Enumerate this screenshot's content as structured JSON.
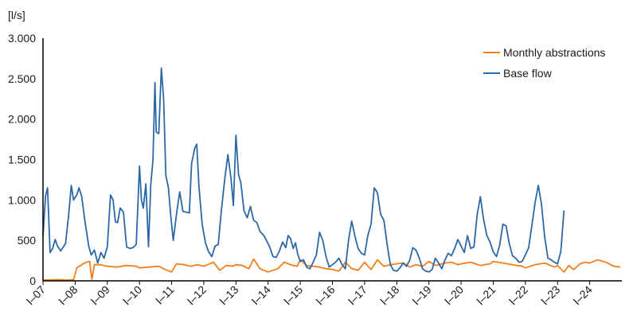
{
  "chart_data": {
    "type": "line",
    "y_unit": "[l/s]",
    "ylim": [
      0,
      3000
    ],
    "y_ticks": [
      {
        "value": 0,
        "label": "0"
      },
      {
        "value": 500,
        "label": "500"
      },
      {
        "value": 1000,
        "label": "1.000"
      },
      {
        "value": 1500,
        "label": "1.500"
      },
      {
        "value": 2000,
        "label": "2.000"
      },
      {
        "value": 2500,
        "label": "2.500"
      },
      {
        "value": 3000,
        "label": "3.000"
      }
    ],
    "x_ticks": [
      "I–07",
      "I–08",
      "I–09",
      "I–10",
      "I–11",
      "I–12",
      "I–13",
      "I–14",
      "I–15",
      "I–16",
      "I–17",
      "I–18",
      "I–19",
      "I–20",
      "I–21",
      "I–22",
      "I–23",
      "I–24"
    ],
    "grid": false,
    "legend_position": "top-right",
    "series": [
      {
        "name": "Monthly abstractions",
        "color": "#f07f1e",
        "points": [
          [
            2007.0,
            10
          ],
          [
            2007.25,
            12
          ],
          [
            2007.5,
            15
          ],
          [
            2007.75,
            10
          ],
          [
            2007.95,
            15
          ],
          [
            2008.05,
            160
          ],
          [
            2008.2,
            200
          ],
          [
            2008.35,
            230
          ],
          [
            2008.45,
            240
          ],
          [
            2008.52,
            20
          ],
          [
            2008.6,
            200
          ],
          [
            2008.8,
            200
          ],
          [
            2009.0,
            180
          ],
          [
            2009.3,
            170
          ],
          [
            2009.6,
            190
          ],
          [
            2009.9,
            180
          ],
          [
            2010.0,
            160
          ],
          [
            2010.3,
            170
          ],
          [
            2010.6,
            180
          ],
          [
            2010.8,
            140
          ],
          [
            2011.0,
            110
          ],
          [
            2011.15,
            210
          ],
          [
            2011.4,
            200
          ],
          [
            2011.6,
            180
          ],
          [
            2011.8,
            200
          ],
          [
            2012.0,
            180
          ],
          [
            2012.3,
            230
          ],
          [
            2012.5,
            130
          ],
          [
            2012.7,
            190
          ],
          [
            2012.9,
            180
          ],
          [
            2013.0,
            200
          ],
          [
            2013.2,
            190
          ],
          [
            2013.4,
            150
          ],
          [
            2013.55,
            270
          ],
          [
            2013.75,
            150
          ],
          [
            2014.0,
            110
          ],
          [
            2014.3,
            150
          ],
          [
            2014.5,
            230
          ],
          [
            2014.7,
            200
          ],
          [
            2014.9,
            180
          ],
          [
            2015.0,
            260
          ],
          [
            2015.2,
            190
          ],
          [
            2015.4,
            180
          ],
          [
            2015.6,
            170
          ],
          [
            2015.8,
            150
          ],
          [
            2016.0,
            140
          ],
          [
            2016.2,
            120
          ],
          [
            2016.4,
            230
          ],
          [
            2016.6,
            150
          ],
          [
            2016.8,
            130
          ],
          [
            2017.0,
            230
          ],
          [
            2017.2,
            140
          ],
          [
            2017.4,
            260
          ],
          [
            2017.6,
            180
          ],
          [
            2017.8,
            200
          ],
          [
            2018.0,
            210
          ],
          [
            2018.2,
            220
          ],
          [
            2018.4,
            170
          ],
          [
            2018.6,
            200
          ],
          [
            2018.8,
            180
          ],
          [
            2019.0,
            240
          ],
          [
            2019.2,
            190
          ],
          [
            2019.5,
            220
          ],
          [
            2019.7,
            230
          ],
          [
            2019.9,
            200
          ],
          [
            2020.0,
            210
          ],
          [
            2020.3,
            230
          ],
          [
            2020.6,
            190
          ],
          [
            2020.9,
            210
          ],
          [
            2021.0,
            240
          ],
          [
            2021.3,
            220
          ],
          [
            2021.6,
            200
          ],
          [
            2021.9,
            180
          ],
          [
            2022.0,
            160
          ],
          [
            2022.3,
            200
          ],
          [
            2022.6,
            220
          ],
          [
            2022.9,
            170
          ],
          [
            2023.0,
            190
          ],
          [
            2023.2,
            110
          ],
          [
            2023.35,
            190
          ],
          [
            2023.5,
            140
          ],
          [
            2023.7,
            210
          ],
          [
            2023.85,
            230
          ],
          [
            2024.0,
            220
          ],
          [
            2024.25,
            260
          ],
          [
            2024.5,
            230
          ],
          [
            2024.75,
            180
          ],
          [
            2024.95,
            170
          ]
        ]
      },
      {
        "name": "Base flow",
        "color": "#2c68a6",
        "points": [
          [
            2007.0,
            550
          ],
          [
            2007.08,
            1050
          ],
          [
            2007.14,
            1150
          ],
          [
            2007.22,
            350
          ],
          [
            2007.3,
            400
          ],
          [
            2007.38,
            510
          ],
          [
            2007.45,
            430
          ],
          [
            2007.55,
            370
          ],
          [
            2007.7,
            460
          ],
          [
            2007.8,
            820
          ],
          [
            2007.88,
            1180
          ],
          [
            2007.95,
            1000
          ],
          [
            2008.05,
            1060
          ],
          [
            2008.12,
            1150
          ],
          [
            2008.2,
            1050
          ],
          [
            2008.3,
            750
          ],
          [
            2008.42,
            430
          ],
          [
            2008.5,
            320
          ],
          [
            2008.6,
            380
          ],
          [
            2008.7,
            220
          ],
          [
            2008.8,
            350
          ],
          [
            2008.9,
            280
          ],
          [
            2009.0,
            420
          ],
          [
            2009.1,
            1060
          ],
          [
            2009.18,
            1000
          ],
          [
            2009.25,
            730
          ],
          [
            2009.32,
            720
          ],
          [
            2009.4,
            900
          ],
          [
            2009.5,
            850
          ],
          [
            2009.6,
            420
          ],
          [
            2009.7,
            400
          ],
          [
            2009.8,
            410
          ],
          [
            2009.9,
            450
          ],
          [
            2010.0,
            1420
          ],
          [
            2010.06,
            1000
          ],
          [
            2010.12,
            900
          ],
          [
            2010.2,
            1200
          ],
          [
            2010.28,
            420
          ],
          [
            2010.35,
            1180
          ],
          [
            2010.42,
            1500
          ],
          [
            2010.48,
            2450
          ],
          [
            2010.52,
            1840
          ],
          [
            2010.6,
            1820
          ],
          [
            2010.68,
            2630
          ],
          [
            2010.75,
            2250
          ],
          [
            2010.82,
            1300
          ],
          [
            2010.9,
            1150
          ],
          [
            2010.98,
            780
          ],
          [
            2011.05,
            500
          ],
          [
            2011.15,
            820
          ],
          [
            2011.25,
            1100
          ],
          [
            2011.35,
            860
          ],
          [
            2011.45,
            850
          ],
          [
            2011.55,
            840
          ],
          [
            2011.62,
            1450
          ],
          [
            2011.72,
            1640
          ],
          [
            2011.78,
            1690
          ],
          [
            2011.85,
            1160
          ],
          [
            2011.95,
            700
          ],
          [
            2012.05,
            470
          ],
          [
            2012.15,
            360
          ],
          [
            2012.25,
            300
          ],
          [
            2012.35,
            430
          ],
          [
            2012.45,
            450
          ],
          [
            2012.55,
            890
          ],
          [
            2012.65,
            1250
          ],
          [
            2012.75,
            1560
          ],
          [
            2012.85,
            1250
          ],
          [
            2012.92,
            930
          ],
          [
            2013.0,
            1800
          ],
          [
            2013.08,
            1310
          ],
          [
            2013.15,
            1220
          ],
          [
            2013.25,
            870
          ],
          [
            2013.35,
            780
          ],
          [
            2013.45,
            920
          ],
          [
            2013.55,
            750
          ],
          [
            2013.65,
            720
          ],
          [
            2013.75,
            610
          ],
          [
            2013.85,
            570
          ],
          [
            2013.95,
            500
          ],
          [
            2014.05,
            420
          ],
          [
            2014.15,
            300
          ],
          [
            2014.25,
            290
          ],
          [
            2014.35,
            370
          ],
          [
            2014.45,
            480
          ],
          [
            2014.55,
            410
          ],
          [
            2014.62,
            560
          ],
          [
            2014.7,
            520
          ],
          [
            2014.78,
            400
          ],
          [
            2014.85,
            470
          ],
          [
            2014.92,
            330
          ],
          [
            2015.0,
            240
          ],
          [
            2015.1,
            260
          ],
          [
            2015.2,
            170
          ],
          [
            2015.3,
            150
          ],
          [
            2015.4,
            230
          ],
          [
            2015.5,
            320
          ],
          [
            2015.6,
            600
          ],
          [
            2015.7,
            500
          ],
          [
            2015.8,
            300
          ],
          [
            2015.9,
            170
          ],
          [
            2016.0,
            200
          ],
          [
            2016.1,
            230
          ],
          [
            2016.2,
            280
          ],
          [
            2016.3,
            200
          ],
          [
            2016.4,
            150
          ],
          [
            2016.5,
            500
          ],
          [
            2016.6,
            740
          ],
          [
            2016.7,
            550
          ],
          [
            2016.8,
            400
          ],
          [
            2016.9,
            340
          ],
          [
            2017.0,
            320
          ],
          [
            2017.1,
            560
          ],
          [
            2017.2,
            700
          ],
          [
            2017.3,
            1150
          ],
          [
            2017.4,
            1090
          ],
          [
            2017.5,
            820
          ],
          [
            2017.6,
            750
          ],
          [
            2017.7,
            450
          ],
          [
            2017.8,
            200
          ],
          [
            2017.9,
            130
          ],
          [
            2018.0,
            120
          ],
          [
            2018.1,
            160
          ],
          [
            2018.2,
            220
          ],
          [
            2018.3,
            180
          ],
          [
            2018.4,
            250
          ],
          [
            2018.5,
            410
          ],
          [
            2018.6,
            380
          ],
          [
            2018.7,
            280
          ],
          [
            2018.8,
            150
          ],
          [
            2018.9,
            120
          ],
          [
            2019.0,
            110
          ],
          [
            2019.1,
            140
          ],
          [
            2019.2,
            280
          ],
          [
            2019.3,
            220
          ],
          [
            2019.4,
            150
          ],
          [
            2019.5,
            260
          ],
          [
            2019.6,
            340
          ],
          [
            2019.7,
            310
          ],
          [
            2019.8,
            400
          ],
          [
            2019.9,
            510
          ],
          [
            2020.0,
            430
          ],
          [
            2020.1,
            350
          ],
          [
            2020.2,
            560
          ],
          [
            2020.3,
            400
          ],
          [
            2020.4,
            420
          ],
          [
            2020.5,
            820
          ],
          [
            2020.6,
            1040
          ],
          [
            2020.7,
            760
          ],
          [
            2020.8,
            560
          ],
          [
            2020.9,
            480
          ],
          [
            2021.0,
            360
          ],
          [
            2021.1,
            300
          ],
          [
            2021.2,
            440
          ],
          [
            2021.3,
            700
          ],
          [
            2021.4,
            680
          ],
          [
            2021.5,
            460
          ],
          [
            2021.6,
            310
          ],
          [
            2021.7,
            280
          ],
          [
            2021.8,
            230
          ],
          [
            2021.9,
            240
          ],
          [
            2022.0,
            320
          ],
          [
            2022.1,
            410
          ],
          [
            2022.2,
            680
          ],
          [
            2022.3,
            960
          ],
          [
            2022.4,
            1180
          ],
          [
            2022.5,
            950
          ],
          [
            2022.6,
            540
          ],
          [
            2022.7,
            280
          ],
          [
            2022.8,
            260
          ],
          [
            2022.9,
            230
          ],
          [
            2023.0,
            210
          ],
          [
            2023.1,
            360
          ],
          [
            2023.2,
            870
          ]
        ]
      }
    ]
  }
}
